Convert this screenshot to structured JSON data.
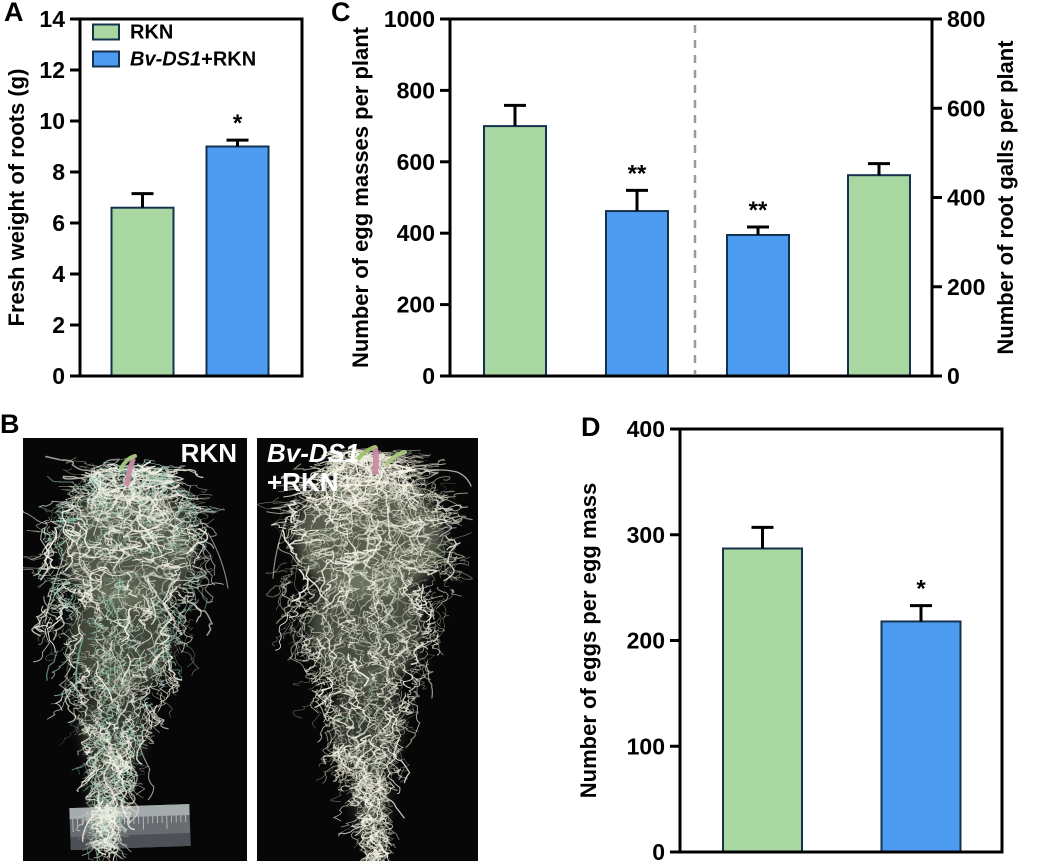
{
  "panel_letters": {
    "A": "A",
    "B": "B",
    "C": "C",
    "D": "D"
  },
  "colors": {
    "green": "#a9d7a2",
    "blue": "#4d9cf1",
    "bar_edge": "#14324e",
    "error": "#000000",
    "frame": "#000000",
    "divider": "#9b9b9b"
  },
  "legend": {
    "items": [
      {
        "swatch": "green",
        "italic": "",
        "text": "RKN"
      },
      {
        "swatch": "blue",
        "italic": "Bv-DS1",
        "text": "+RKN"
      }
    ]
  },
  "photos": {
    "left": {
      "label": "RKN"
    },
    "right": {
      "line1": "Bv-DS1",
      "line2": "+RKN"
    }
  },
  "chart_data": [
    {
      "panel": "A",
      "type": "bar",
      "ylabel": "Fresh weight of roots (g)",
      "ylim": [
        0,
        14
      ],
      "ytick_step": 2,
      "grid": false,
      "categories": [
        "RKN",
        "Bv-DS1+RKN"
      ],
      "bars": [
        {
          "name": "RKN",
          "color": "green",
          "value": 6.6,
          "error": 0.55,
          "sig": ""
        },
        {
          "name": "Bv-DS1+RKN",
          "color": "blue",
          "value": 9.0,
          "error": 0.25,
          "sig": "*"
        }
      ],
      "legend_position": "top-left"
    },
    {
      "panel": "C",
      "type": "bar",
      "ylabel_left": "Number of egg masses per plant",
      "ylim_left": [
        0,
        1000
      ],
      "ytick_step_left": 200,
      "ylabel_right": "Number of root galls per plant",
      "ylim_right": [
        0,
        800
      ],
      "ytick_step_right": 200,
      "categories": [
        "RKN",
        "Bv-DS1+RKN",
        "Bv-DS1+RKN",
        "RKN"
      ],
      "bars": [
        {
          "name": "RKN",
          "measure": "egg masses per plant",
          "axis": "left",
          "color": "green",
          "value": 700,
          "error": 58,
          "sig": ""
        },
        {
          "name": "Bv-DS1+RKN",
          "measure": "egg masses per plant",
          "axis": "left",
          "color": "blue",
          "value": 462,
          "error": 58,
          "sig": "**"
        },
        {
          "name": "Bv-DS1+RKN",
          "measure": "root galls per plant",
          "axis": "right",
          "color": "blue",
          "value": 316,
          "error": 18,
          "sig": "**"
        },
        {
          "name": "RKN",
          "measure": "root galls per plant",
          "axis": "right",
          "color": "green",
          "value": 450,
          "error": 26,
          "sig": ""
        }
      ],
      "divider": {
        "style": "dashed"
      }
    },
    {
      "panel": "D",
      "type": "bar",
      "ylabel": "Number of eggs  per egg mass",
      "ylim": [
        0,
        400
      ],
      "ytick_step": 100,
      "grid": false,
      "categories": [
        "RKN",
        "Bv-DS1+RKN"
      ],
      "bars": [
        {
          "name": "RKN",
          "color": "green",
          "value": 287,
          "error": 20,
          "sig": ""
        },
        {
          "name": "Bv-DS1+RKN",
          "color": "blue",
          "value": 218,
          "error": 15,
          "sig": "*"
        }
      ]
    }
  ]
}
